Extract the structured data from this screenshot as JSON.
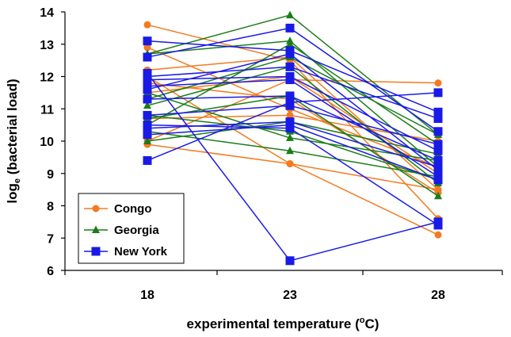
{
  "chart_data": {
    "type": "line",
    "ylabel_main": "log",
    "ylabel_sub": "e",
    "ylabel_rest": " (bacterial load)",
    "xlabel_main": "experimental temperature (",
    "xlabel_sup": "o",
    "xlabel_end": "C)",
    "x_ticks": [
      "18",
      "23",
      "28"
    ],
    "y_ticks": [
      "6",
      "7",
      "8",
      "9",
      "10",
      "11",
      "12",
      "13",
      "14"
    ],
    "ylim": [
      6,
      14
    ],
    "grid": false,
    "legend_position": "bottom-left",
    "groups": [
      {
        "name": "Congo",
        "color": "#f47a20",
        "marker": "circle",
        "lines": [
          [
            13.6,
            12.5,
            7.6
          ],
          [
            12.2,
            12.6,
            8.5
          ],
          [
            12.0,
            9.3,
            7.1
          ],
          [
            11.8,
            11.3,
            8.4
          ],
          [
            10.0,
            11.9,
            11.8
          ],
          [
            9.9,
            9.3,
            8.5
          ],
          [
            11.5,
            12.0,
            9.0
          ],
          [
            10.7,
            10.8,
            10.0
          ],
          [
            12.9,
            11.0,
            9.2
          ]
        ]
      },
      {
        "name": "Georgia",
        "color": "#1a7d1a",
        "marker": "triangle",
        "lines": [
          [
            12.7,
            13.9,
            10.2
          ],
          [
            12.7,
            13.1,
            9.2
          ],
          [
            10.5,
            13.0,
            9.9
          ],
          [
            11.1,
            12.3,
            8.7
          ],
          [
            10.7,
            11.4,
            8.3
          ],
          [
            10.0,
            10.6,
            9.6
          ],
          [
            11.5,
            10.1,
            9.4
          ],
          [
            10.3,
            9.7,
            8.9
          ],
          [
            11.3,
            12.6,
            10.2
          ],
          [
            10.8,
            10.3,
            8.8
          ]
        ]
      },
      {
        "name": "New York",
        "color": "#1a1ae6",
        "marker": "square",
        "lines": [
          [
            13.1,
            12.8,
            10.9
          ],
          [
            12.6,
            13.5,
            10.3
          ],
          [
            12.1,
            6.3,
            7.5
          ],
          [
            11.9,
            12.0,
            9.7
          ],
          [
            9.4,
            11.2,
            11.5
          ],
          [
            10.2,
            10.5,
            8.8
          ],
          [
            11.6,
            12.7,
            9.1
          ],
          [
            10.8,
            11.1,
            9.9
          ],
          [
            10.5,
            10.4,
            7.4
          ],
          [
            11.3,
            11.4,
            9.4
          ],
          [
            12.0,
            12.3,
            10.7
          ],
          [
            10.4,
            10.6,
            9.2
          ],
          [
            11.7,
            11.9,
            8.9
          ]
        ]
      }
    ]
  }
}
